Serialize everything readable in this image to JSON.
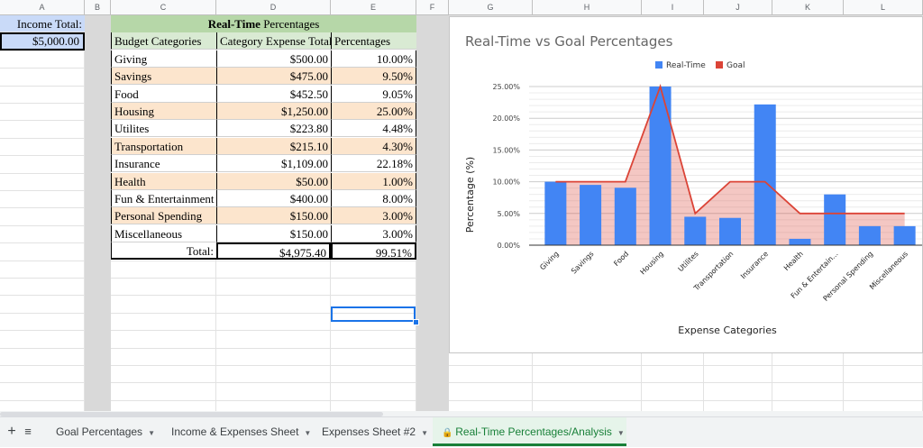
{
  "columns": [
    "A",
    "B",
    "C",
    "D",
    "E",
    "F",
    "G",
    "H",
    "I",
    "J",
    "K",
    "L"
  ],
  "income": {
    "label": "Income Total:",
    "value": "$5,000.00"
  },
  "table": {
    "title_bold": "Real-Time",
    "title_rest": " Percentages",
    "headers": [
      "Budget Categories",
      "Category Expense Total",
      "Percentages"
    ],
    "rows": [
      {
        "category": "Giving",
        "total": "$500.00",
        "pct": "10.00%"
      },
      {
        "category": "Savings",
        "total": "$475.00",
        "pct": "9.50%"
      },
      {
        "category": "Food",
        "total": "$452.50",
        "pct": "9.05%"
      },
      {
        "category": "Housing",
        "total": "$1,250.00",
        "pct": "25.00%"
      },
      {
        "category": "Utilites",
        "total": "$223.80",
        "pct": "4.48%"
      },
      {
        "category": "Transportation",
        "total": "$215.10",
        "pct": "4.30%"
      },
      {
        "category": "Insurance",
        "total": "$1,109.00",
        "pct": "22.18%"
      },
      {
        "category": "Health",
        "total": "$50.00",
        "pct": "1.00%"
      },
      {
        "category": "Fun & Entertainment",
        "total": "$400.00",
        "pct": "8.00%"
      },
      {
        "category": "Personal Spending",
        "total": "$150.00",
        "pct": "3.00%"
      },
      {
        "category": "Miscellaneous",
        "total": "$150.00",
        "pct": "3.00%"
      }
    ],
    "total_label": "Total:",
    "total_value": "$4,975.40",
    "total_pct": "99.51%"
  },
  "colors": {
    "stripe": "#fce5cd",
    "header_green": "#b6d7a8",
    "income_blue": "#c9daf8",
    "realtime": "#4285f4",
    "goal": "#db4437",
    "active_tab": "#188038"
  },
  "sheet_tabs": [
    {
      "label": "Goal Percentages"
    },
    {
      "label": "Income & Expenses Sheet"
    },
    {
      "label": "Expenses Sheet #2"
    },
    {
      "label": "Real-Time Percentages/Analysis",
      "active": true
    }
  ],
  "chart_data": {
    "type": "bar",
    "title": "Real-Time vs Goal Percentages",
    "xlabel": "Expense Categories",
    "ylabel": "Percentage (%)",
    "legend_position": "top",
    "categories": [
      "Giving",
      "Savings",
      "Food",
      "Housing",
      "Utilites",
      "Transportation",
      "Insurance",
      "Health",
      "Fun & Entertain...",
      "Personal Spending",
      "Miscellaneous"
    ],
    "series": [
      {
        "name": "Real-Time",
        "type": "bar",
        "values": [
          10.0,
          9.5,
          9.05,
          25.0,
          4.48,
          4.3,
          22.18,
          1.0,
          8.0,
          3.0,
          3.0
        ]
      },
      {
        "name": "Goal",
        "type": "area",
        "values": [
          10,
          10,
          10,
          25,
          5,
          10,
          10,
          5,
          5,
          5,
          5
        ]
      }
    ],
    "ylim": [
      0,
      25
    ],
    "yticks": [
      "0.00%",
      "5.00%",
      "10.00%",
      "15.00%",
      "20.00%",
      "25.00%"
    ],
    "grid": true
  }
}
